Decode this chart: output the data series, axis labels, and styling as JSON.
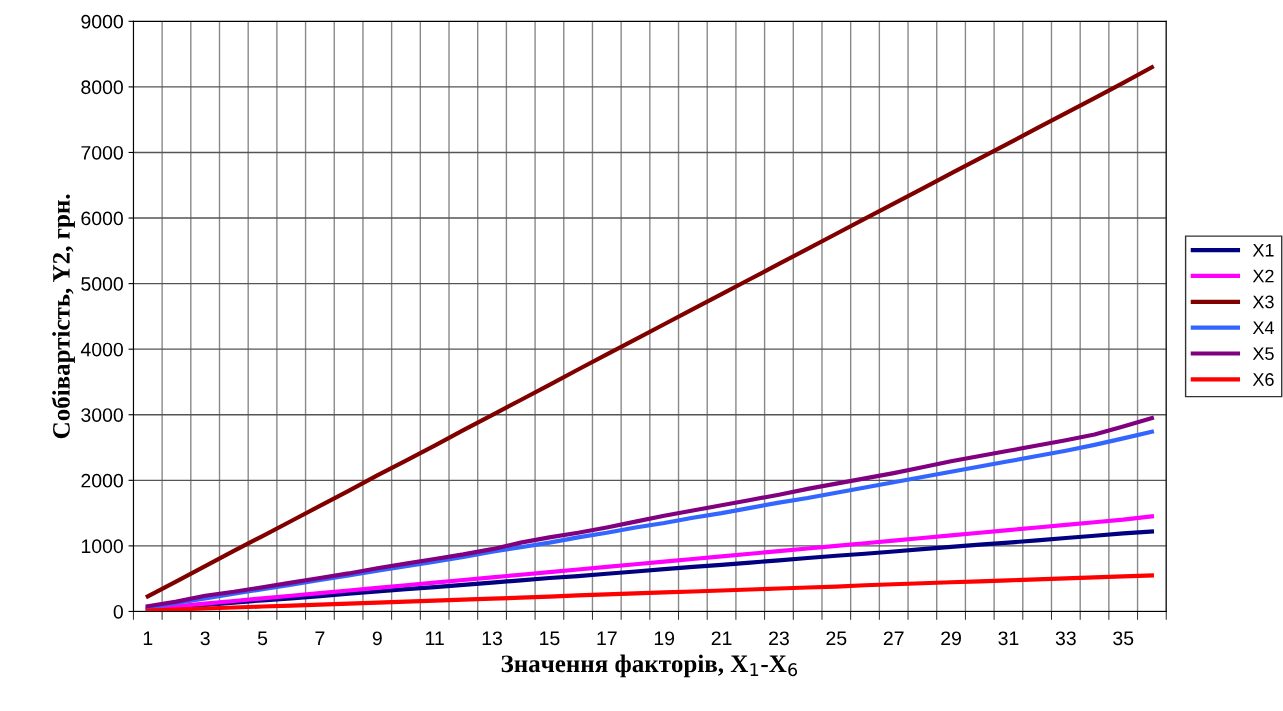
{
  "chart_data": {
    "type": "line",
    "xlabel": "Значення факторів, X$_{1}$-X$_{6}$",
    "ylabel": "Собівартість, Y2, грн.",
    "categories": [
      "1",
      null,
      "3",
      null,
      "5",
      null,
      "7",
      null,
      "9",
      null,
      "11",
      null,
      "13",
      null,
      "15",
      null,
      "17",
      null,
      "19",
      null,
      "21",
      null,
      "23",
      null,
      "25",
      null,
      "27",
      null,
      "29",
      null,
      "31",
      null,
      "33",
      null,
      "35",
      null
    ],
    "series": [
      {
        "name": "X1",
        "color": "#000080",
        "values": [
          30,
          65,
          100,
          135,
          170,
          200,
          235,
          270,
          305,
          340,
          370,
          405,
          440,
          475,
          510,
          540,
          575,
          610,
          645,
          680,
          710,
          745,
          780,
          815,
          850,
          880,
          915,
          950,
          985,
          1020,
          1050,
          1085,
          1120,
          1155,
          1190,
          1220
        ]
      },
      {
        "name": "X2",
        "color": "#ff00ff",
        "values": [
          40,
          80,
          120,
          160,
          200,
          240,
          280,
          320,
          360,
          400,
          440,
          480,
          520,
          560,
          600,
          640,
          680,
          720,
          760,
          800,
          840,
          880,
          920,
          960,
          1000,
          1040,
          1080,
          1120,
          1160,
          1200,
          1240,
          1280,
          1320,
          1360,
          1400,
          1450
        ]
      },
      {
        "name": "X3",
        "color": "#800000",
        "values": [
          230,
          460,
          690,
          925,
          1150,
          1380,
          1610,
          1840,
          2075,
          2300,
          2530,
          2765,
          2995,
          3225,
          3455,
          3690,
          3920,
          4150,
          4380,
          4610,
          4840,
          5070,
          5300,
          5530,
          5760,
          5990,
          6220,
          6450,
          6680,
          6910,
          7140,
          7370,
          7600,
          7830,
          8060,
          8300
        ]
      },
      {
        "name": "X4",
        "color": "#3366ff",
        "values": [
          60,
          130,
          200,
          270,
          340,
          410,
          480,
          550,
          620,
          690,
          760,
          830,
          910,
          980,
          1050,
          1130,
          1200,
          1280,
          1350,
          1430,
          1500,
          1580,
          1660,
          1730,
          1810,
          1890,
          1970,
          2050,
          2130,
          2210,
          2290,
          2370,
          2450,
          2540,
          2640,
          2740
        ]
      },
      {
        "name": "X5",
        "color": "#800080",
        "values": [
          80,
          150,
          240,
          300,
          370,
          440,
          510,
          580,
          660,
          730,
          800,
          870,
          950,
          1050,
          1130,
          1200,
          1280,
          1370,
          1460,
          1540,
          1620,
          1700,
          1780,
          1870,
          1950,
          2030,
          2110,
          2200,
          2290,
          2370,
          2450,
          2530,
          2610,
          2700,
          2820,
          2950
        ]
      },
      {
        "name": "X6",
        "color": "#ff0000",
        "values": [
          15,
          30,
          45,
          60,
          75,
          90,
          105,
          120,
          135,
          150,
          165,
          180,
          195,
          210,
          225,
          245,
          260,
          275,
          290,
          305,
          320,
          335,
          350,
          365,
          380,
          400,
          415,
          430,
          445,
          460,
          475,
          490,
          505,
          520,
          535,
          550
        ]
      }
    ],
    "ylim": [
      0,
      9000
    ],
    "yticks": [
      0,
      1000,
      2000,
      3000,
      4000,
      5000,
      6000,
      7000,
      8000,
      9000
    ],
    "grid": true,
    "legend": "right",
    "marker": "none",
    "line_style": "solid"
  }
}
